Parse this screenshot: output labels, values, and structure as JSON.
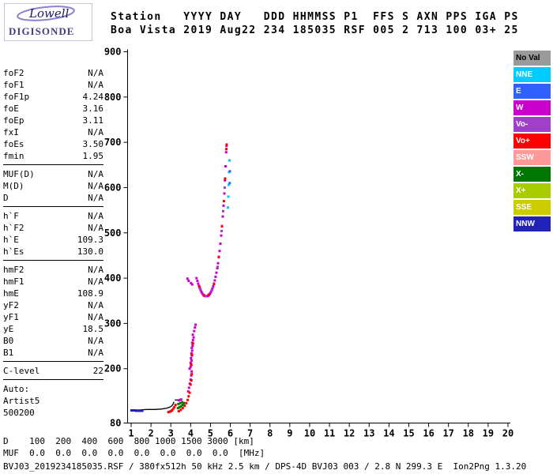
{
  "logo": {
    "brand": "Lowell",
    "product": "DIGISONDE"
  },
  "header": {
    "line1": "Station   YYYY DAY   DDD HHMMSS P1  FFS S AXN PPS IGA PS",
    "line2": "Boa Vista 2019 Aug22 234 185035 RSF 005 2 713 100 03+ 25"
  },
  "params": {
    "groups": [
      {
        "rows": [
          [
            "foF2",
            "N/A"
          ],
          [
            "foF1",
            "N/A"
          ],
          [
            "foF1p",
            "4.24"
          ],
          [
            "foE",
            "3.16"
          ],
          [
            "foEp",
            "3.11"
          ],
          [
            "fxI",
            "N/A"
          ],
          [
            "foEs",
            "3.50"
          ],
          [
            "fmin",
            "1.95"
          ]
        ]
      },
      {
        "rows": [
          [
            "MUF(D)",
            "N/A"
          ],
          [
            "M(D)",
            "N/A"
          ],
          [
            "D",
            "N/A"
          ]
        ]
      },
      {
        "rows": [
          [
            "h`F",
            "N/A"
          ],
          [
            "h`F2",
            "N/A"
          ],
          [
            "h`E",
            "109.3"
          ],
          [
            "h`Es",
            "130.0"
          ]
        ]
      },
      {
        "rows": [
          [
            "hmF2",
            "N/A"
          ],
          [
            "hmF1",
            "N/A"
          ],
          [
            "hmE",
            "108.9"
          ],
          [
            "yF2",
            "N/A"
          ],
          [
            "yF1",
            "N/A"
          ],
          [
            "yE",
            "18.5"
          ],
          [
            "B0",
            "N/A"
          ],
          [
            "B1",
            "N/A"
          ]
        ]
      },
      {
        "rows": [
          [
            "C-level",
            "22"
          ]
        ]
      },
      {
        "rows": [
          [
            "Auto:",
            ""
          ],
          [
            "Artist5",
            ""
          ],
          [
            "500200",
            ""
          ]
        ],
        "no_divider": true
      }
    ]
  },
  "legend": {
    "items": [
      {
        "label": "No Val",
        "bg": "#9A9A9A",
        "fg": "#000000"
      },
      {
        "label": "NNE",
        "bg": "#00CCFF",
        "fg": "#FFFFFF"
      },
      {
        "label": "E",
        "bg": "#3060FF",
        "fg": "#FFFFFF"
      },
      {
        "label": "W",
        "bg": "#CC00CC",
        "fg": "#FFFFFF"
      },
      {
        "label": "Vo-",
        "bg": "#A040C8",
        "fg": "#FFFFFF"
      },
      {
        "label": "Vo+",
        "bg": "#FF0000",
        "fg": "#FFFFFF"
      },
      {
        "label": "SSW",
        "bg": "#FF9999",
        "fg": "#FFFFFF"
      },
      {
        "label": "X-",
        "bg": "#007700",
        "fg": "#FFFFFF"
      },
      {
        "label": "X+",
        "bg": "#A8CC00",
        "fg": "#FFFFFF"
      },
      {
        "label": "SSE",
        "bg": "#CCCC00",
        "fg": "#FFFFFF"
      },
      {
        "label": "NNW",
        "bg": "#2222BB",
        "fg": "#FFFFFF"
      }
    ]
  },
  "footer": {
    "d_row": "D    100  200  400  600  800 1000 1500 3000 [km]",
    "muf_row": "MUF  0.0  0.0  0.0  0.0  0.0  0.0  0.0  0.0  [MHz]",
    "status": "BVJ03_2019234185035.RSF / 380fx512h 50 kHz 2.5 km / DPS-4D BVJ03 003 / 2.8 N 299.3 E  Ion2Png 1.3.20"
  },
  "chart_data": {
    "type": "scatter",
    "xlabel": "[MHz]",
    "ylabel": "[km]",
    "xlim": [
      1,
      20
    ],
    "ylim": [
      80,
      900
    ],
    "xticks": [
      1,
      2,
      3,
      4,
      5,
      6,
      7,
      8,
      9,
      10,
      11,
      12,
      13,
      14,
      15,
      16,
      17,
      18,
      19,
      20
    ],
    "yticks": [
      80,
      200,
      300,
      400,
      500,
      600,
      700,
      800,
      900
    ],
    "grid": false,
    "legend_position": "right",
    "series": [
      {
        "name": "W",
        "color": "#CC00CC",
        "points": [
          [
            4.3,
            400
          ],
          [
            4.34,
            394
          ],
          [
            4.38,
            388
          ],
          [
            4.42,
            383
          ],
          [
            4.46,
            378
          ],
          [
            4.5,
            374
          ],
          [
            4.54,
            370
          ],
          [
            4.58,
            367
          ],
          [
            4.62,
            364
          ],
          [
            4.66,
            362
          ],
          [
            4.7,
            361
          ],
          [
            4.74,
            360
          ],
          [
            4.78,
            360
          ],
          [
            4.82,
            360
          ],
          [
            4.86,
            361
          ],
          [
            4.9,
            362
          ],
          [
            4.94,
            364
          ],
          [
            4.98,
            366
          ],
          [
            5.02,
            369
          ],
          [
            5.06,
            373
          ],
          [
            5.1,
            377
          ],
          [
            5.14,
            382
          ],
          [
            5.18,
            388
          ],
          [
            5.22,
            395
          ],
          [
            5.26,
            403
          ],
          [
            5.3,
            412
          ],
          [
            5.34,
            422
          ],
          [
            5.38,
            433
          ],
          [
            5.42,
            446
          ],
          [
            5.46,
            460
          ],
          [
            5.5,
            476
          ],
          [
            5.54,
            494
          ],
          [
            5.58,
            514
          ],
          [
            5.62,
            536
          ],
          [
            5.66,
            560
          ],
          [
            5.7,
            587
          ],
          [
            5.73,
            616
          ],
          [
            5.76,
            647
          ],
          [
            5.79,
            678
          ],
          [
            5.81,
            692
          ],
          [
            3.84,
            399
          ],
          [
            3.9,
            394
          ],
          [
            4.02,
            389
          ],
          [
            4.08,
            386
          ],
          [
            3.95,
            200
          ],
          [
            4.0,
            204
          ],
          [
            4.04,
            208
          ],
          [
            4.0,
            213
          ],
          [
            4.05,
            218
          ],
          [
            4.02,
            223
          ],
          [
            4.06,
            229
          ],
          [
            4.04,
            234
          ],
          [
            4.08,
            240
          ],
          [
            4.06,
            246
          ],
          [
            4.1,
            251
          ],
          [
            4.08,
            257
          ],
          [
            4.12,
            263
          ],
          [
            4.15,
            269
          ],
          [
            4.11,
            275
          ],
          [
            4.18,
            283
          ],
          [
            4.22,
            291
          ],
          [
            4.25,
            297
          ],
          [
            3.88,
            150
          ],
          [
            3.92,
            158
          ],
          [
            3.96,
            167
          ],
          [
            4.0,
            176
          ],
          [
            4.03,
            185
          ],
          [
            4.05,
            194
          ],
          [
            3.4,
            130
          ],
          [
            3.46,
            131
          ],
          [
            3.52,
            132
          ]
        ]
      },
      {
        "name": "Vo+",
        "color": "#FF0000",
        "points": [
          [
            2.88,
            104
          ],
          [
            2.94,
            105
          ],
          [
            3.0,
            106
          ],
          [
            3.06,
            108
          ],
          [
            3.12,
            111
          ],
          [
            3.18,
            115
          ],
          [
            3.24,
            120
          ],
          [
            3.4,
            106
          ],
          [
            3.5,
            109
          ],
          [
            3.6,
            113
          ],
          [
            3.7,
            118
          ],
          [
            3.78,
            124
          ],
          [
            3.85,
            131
          ],
          [
            3.9,
            139
          ],
          [
            3.95,
            147
          ],
          [
            4.44,
            381
          ],
          [
            4.68,
            362
          ],
          [
            4.92,
            363
          ],
          [
            5.18,
            387
          ],
          [
            5.42,
            447
          ],
          [
            5.58,
            515
          ],
          [
            5.68,
            570
          ],
          [
            5.74,
            620
          ],
          [
            5.8,
            685
          ],
          [
            5.82,
            695
          ],
          [
            4.02,
            210
          ],
          [
            4.07,
            231
          ],
          [
            4.12,
            256
          ],
          [
            4.0,
            165
          ],
          [
            4.04,
            174
          ],
          [
            4.06,
            188
          ]
        ]
      },
      {
        "name": "Vo-",
        "color": "#A040C8",
        "points": [
          [
            4.48,
            377
          ],
          [
            4.76,
            360
          ],
          [
            5.08,
            374
          ],
          [
            5.36,
            425
          ],
          [
            5.56,
            504
          ],
          [
            5.64,
            548
          ],
          [
            5.72,
            600
          ]
        ]
      },
      {
        "name": "NNE",
        "color": "#00CCFF",
        "points": [
          [
            5.88,
            556
          ],
          [
            5.9,
            580
          ],
          [
            5.92,
            606
          ],
          [
            5.94,
            634
          ],
          [
            5.96,
            660
          ]
        ]
      },
      {
        "name": "E",
        "color": "#3060FF",
        "points": [
          [
            5.97,
            610
          ],
          [
            5.98,
            636
          ]
        ]
      },
      {
        "name": "X-",
        "color": "#007700",
        "points": [
          [
            3.36,
            113
          ],
          [
            3.44,
            115
          ],
          [
            3.52,
            117
          ],
          [
            3.6,
            120
          ],
          [
            3.38,
            122
          ],
          [
            3.48,
            124
          ],
          [
            3.58,
            126
          ],
          [
            3.66,
            124
          ]
        ]
      },
      {
        "name": "NNW",
        "color": "#2222BB",
        "points": [
          [
            1.02,
            108
          ],
          [
            1.08,
            108
          ],
          [
            1.14,
            108
          ],
          [
            1.2,
            108
          ],
          [
            1.26,
            107
          ],
          [
            1.32,
            107
          ],
          [
            1.38,
            107
          ],
          [
            1.44,
            107
          ],
          [
            1.5,
            107
          ],
          [
            1.56,
            107
          ]
        ]
      }
    ],
    "artist_trace": {
      "color": "#000000",
      "lines": [
        [
          [
            1.0,
            109
          ],
          [
            1.4,
            109
          ],
          [
            1.8,
            110
          ],
          [
            2.2,
            110
          ],
          [
            2.55,
            111
          ],
          [
            2.8,
            113
          ],
          [
            2.95,
            115
          ],
          [
            3.05,
            118
          ],
          [
            3.12,
            122
          ],
          [
            3.16,
            127
          ]
        ],
        [
          [
            3.2,
            131
          ],
          [
            3.5,
            131
          ]
        ]
      ]
    }
  }
}
